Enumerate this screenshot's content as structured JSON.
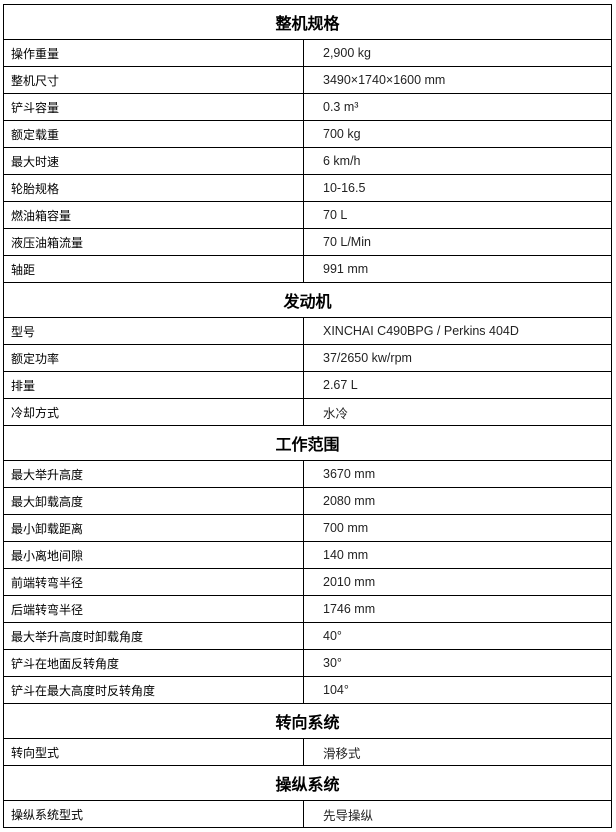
{
  "sections": [
    {
      "title": "整机规格",
      "rows": [
        {
          "label": "操作重量",
          "value": "2,900 kg"
        },
        {
          "label": "整机尺寸",
          "value": "3490×1740×1600    mm"
        },
        {
          "label": "铲斗容量",
          "value": "0.3 m³"
        },
        {
          "label": "额定载重",
          "value": "700 kg"
        },
        {
          "label": "最大时速",
          "value": "6 km/h"
        },
        {
          "label": "轮胎规格",
          "value": "10-16.5"
        },
        {
          "label": "燃油箱容量",
          "value": "70 L"
        },
        {
          "label": "液压油箱流量",
          "value": "70 L/Min"
        },
        {
          "label": "轴距",
          "value": "991 mm"
        }
      ]
    },
    {
      "title": "发动机",
      "rows": [
        {
          "label": "型号",
          "value": "XINCHAI    C490BPG / Perkins 404D"
        },
        {
          "label": "额定功率",
          "value": "37/2650    kw/rpm"
        },
        {
          "label": "排量",
          "value": "2.67 L"
        },
        {
          "label": "冷却方式",
          "value": "水冷"
        }
      ]
    },
    {
      "title": "工作范围",
      "rows": [
        {
          "label": "最大举升高度",
          "value": "3670 mm"
        },
        {
          "label": "最大卸载高度",
          "value": "2080 mm"
        },
        {
          "label": "最小卸载距离",
          "value": "700 mm"
        },
        {
          "label": "最小离地间隙",
          "value": "140 mm"
        },
        {
          "label": "前端转弯半径",
          "value": "2010 mm"
        },
        {
          "label": "后端转弯半径",
          "value": "1746 mm"
        },
        {
          "label": "最大举升高度时卸载角度",
          "value": "40°"
        },
        {
          "label": "铲斗在地面反转角度",
          "value": "30°"
        },
        {
          "label": "铲斗在最大高度时反转角度",
          "value": "104°"
        }
      ]
    },
    {
      "title": "转向系统",
      "rows": [
        {
          "label": "转向型式",
          "value": "滑移式"
        }
      ]
    },
    {
      "title": "操纵系统",
      "rows": [
        {
          "label": "操纵系统型式",
          "value": "先导操纵"
        }
      ]
    }
  ]
}
